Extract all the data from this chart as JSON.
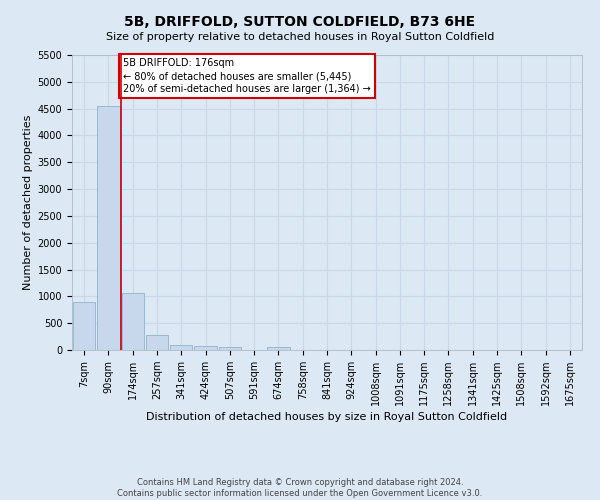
{
  "title": "5B, DRIFFOLD, SUTTON COLDFIELD, B73 6HE",
  "subtitle": "Size of property relative to detached houses in Royal Sutton Coldfield",
  "xlabel": "Distribution of detached houses by size in Royal Sutton Coldfield",
  "ylabel": "Number of detached properties",
  "footer_line1": "Contains HM Land Registry data © Crown copyright and database right 2024.",
  "footer_line2": "Contains public sector information licensed under the Open Government Licence v3.0.",
  "categories": [
    "7sqm",
    "90sqm",
    "174sqm",
    "257sqm",
    "341sqm",
    "424sqm",
    "507sqm",
    "591sqm",
    "674sqm",
    "758sqm",
    "841sqm",
    "924sqm",
    "1008sqm",
    "1091sqm",
    "1175sqm",
    "1258sqm",
    "1341sqm",
    "1425sqm",
    "1508sqm",
    "1592sqm",
    "1675sqm"
  ],
  "values": [
    900,
    4550,
    1060,
    280,
    90,
    70,
    60,
    0,
    60,
    0,
    0,
    0,
    0,
    0,
    0,
    0,
    0,
    0,
    0,
    0,
    0
  ],
  "bar_color": "#c8d8ec",
  "bar_edge_color": "#9ab8d0",
  "grid_color": "#c8d8e8",
  "background_color": "#dce8f4",
  "annotation_text": "5B DRIFFOLD: 176sqm\n← 80% of detached houses are smaller (5,445)\n20% of semi-detached houses are larger (1,364) →",
  "annotation_box_color": "#ffffff",
  "annotation_border_color": "#cc0000",
  "property_line_index": 2,
  "ylim": [
    0,
    5500
  ],
  "yticks": [
    0,
    500,
    1000,
    1500,
    2000,
    2500,
    3000,
    3500,
    4000,
    4500,
    5000,
    5500
  ],
  "title_fontsize": 10,
  "subtitle_fontsize": 8,
  "xlabel_fontsize": 8,
  "ylabel_fontsize": 8,
  "tick_fontsize": 7,
  "annotation_fontsize": 7,
  "footer_fontsize": 6
}
